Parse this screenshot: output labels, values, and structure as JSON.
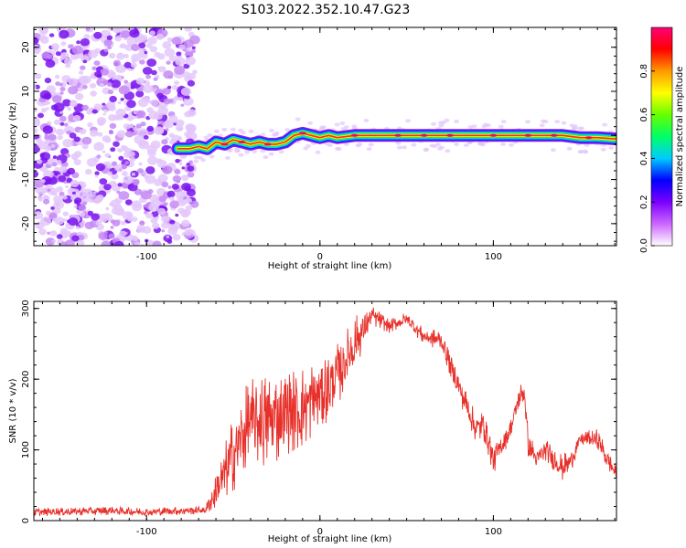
{
  "title": "S103.2022.352.10.47.G23",
  "chart_data": [
    {
      "type": "heatmap",
      "xlabel": "Height of straight line (km)",
      "ylabel": "Frequency (Hz)",
      "xlim": [
        -165,
        171
      ],
      "ylim": [
        -25,
        24.5
      ],
      "x_ticks": [
        -100,
        0,
        100
      ],
      "y_ticks": [
        -20,
        -10,
        0,
        10,
        20
      ],
      "noise_region": {
        "x": [
          -165,
          -75
        ],
        "y": [
          -25,
          24.5
        ]
      },
      "ridge_x": [
        -82,
        -75,
        -70,
        -65,
        -60,
        -55,
        -50,
        -45,
        -40,
        -35,
        -30,
        -25,
        -20,
        -15,
        -10,
        -5,
        0,
        5,
        10,
        20,
        30,
        40,
        60,
        80,
        100,
        120,
        140,
        150,
        160,
        171
      ],
      "ridge_y": [
        -3,
        -3,
        -2.5,
        -3,
        -1.5,
        -2,
        -1,
        -1.5,
        -2,
        -1.5,
        -2,
        -2,
        -1.5,
        0,
        0.5,
        0,
        -0.5,
        0,
        -0.5,
        0,
        0,
        0,
        0,
        0,
        0,
        0,
        0,
        -0.5,
        -0.5,
        -0.8
      ],
      "colorbar": {
        "label": "Normalized spectral amplitude",
        "range": [
          0.0,
          1.0
        ],
        "ticks": [
          "0.0",
          "0.2",
          "0.4",
          "0.6",
          "0.8"
        ],
        "tick_values": [
          0.0,
          0.2,
          0.4,
          0.6,
          0.8
        ],
        "colors": [
          "#ffffff",
          "#cc66ff",
          "#7b00ff",
          "#0000ff",
          "#00ccff",
          "#00ff66",
          "#66ff00",
          "#ffff00",
          "#ff9900",
          "#ff0000",
          "#ff0077"
        ]
      }
    },
    {
      "type": "line",
      "xlabel": "Height of straight line (km)",
      "ylabel": "SNR (10 * v/v)",
      "xlim": [
        -165,
        171
      ],
      "ylim": [
        0,
        310
      ],
      "x_ticks": [
        -100,
        0,
        100
      ],
      "y_ticks": [
        0,
        100,
        200,
        300
      ],
      "color": "#e8302a",
      "series": [
        {
          "name": "SNR",
          "x": [
            -165,
            -140,
            -120,
            -100,
            -80,
            -66,
            -60,
            -50,
            -40,
            -30,
            -20,
            -10,
            0,
            10,
            20,
            30,
            40,
            50,
            60,
            70,
            80,
            90,
            95,
            100,
            110,
            115,
            118,
            120,
            125,
            130,
            140,
            145,
            150,
            160,
            165,
            171
          ],
          "y": [
            12,
            13,
            14,
            12,
            14,
            15,
            40,
            95,
            140,
            140,
            150,
            160,
            180,
            205,
            250,
            290,
            275,
            285,
            260,
            255,
            190,
            130,
            135,
            85,
            130,
            175,
            180,
            110,
            85,
            100,
            75,
            85,
            115,
            115,
            90,
            65
          ],
          "noise_amplitude": [
            6,
            6,
            6,
            6,
            6,
            6,
            25,
            55,
            65,
            70,
            60,
            60,
            55,
            45,
            40,
            15,
            10,
            10,
            12,
            15,
            20,
            20,
            25,
            20,
            15,
            20,
            20,
            20,
            15,
            15,
            20,
            15,
            10,
            15,
            15,
            10
          ]
        }
      ]
    }
  ]
}
